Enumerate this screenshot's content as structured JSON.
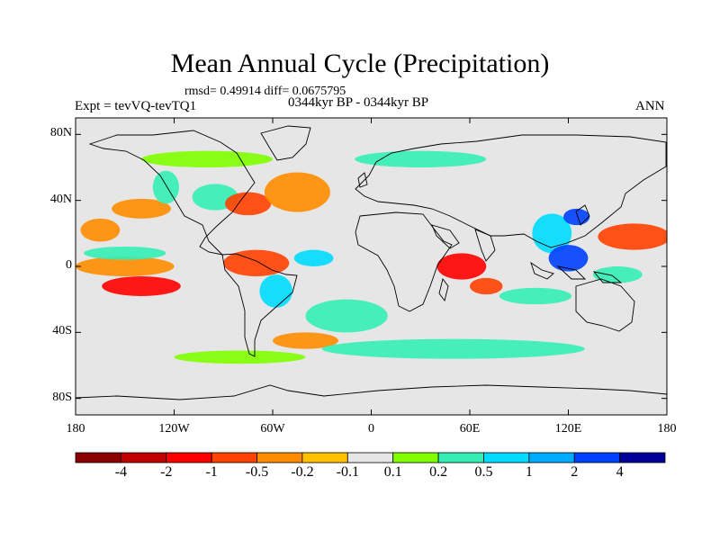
{
  "figure": {
    "title": "Mean Annual Cycle (Precipitation)",
    "stats": "rmsd= 0.49914 diff= 0.0675795",
    "left_label": "Expt = tevVQ-tevTQ1",
    "center_label": "0344kyr BP - 0344kyr BP",
    "right_label": "ANN"
  },
  "map": {
    "projection": "cylindrical equidistant",
    "lon_range": [
      -180,
      180
    ],
    "lat_range": [
      -90,
      90
    ],
    "background_color": "#e6e6e6",
    "coastline_color": "#000000",
    "lat_ticks": [
      {
        "label": "80N",
        "lat": 80
      },
      {
        "label": "40N",
        "lat": 40
      },
      {
        "label": "0",
        "lat": 0
      },
      {
        "label": "40S",
        "lat": -40
      },
      {
        "label": "80S",
        "lat": -80
      }
    ],
    "lon_ticks": [
      {
        "label": "180",
        "lon": -180
      },
      {
        "label": "120W",
        "lon": -120
      },
      {
        "label": "60W",
        "lon": -60
      },
      {
        "label": "0",
        "lon": 0
      },
      {
        "label": "60E",
        "lon": 60
      },
      {
        "label": "120E",
        "lon": 120
      },
      {
        "label": "180",
        "lon": 180
      }
    ],
    "anomaly_patches": [
      {
        "lon": -150,
        "lat": 0,
        "rx": 30,
        "ry": 6,
        "color": "#ff8c00"
      },
      {
        "lon": -140,
        "lat": -12,
        "rx": 24,
        "ry": 6,
        "color": "#ff0000"
      },
      {
        "lon": -150,
        "lat": 8,
        "rx": 25,
        "ry": 4,
        "color": "#34eeb5"
      },
      {
        "lon": -165,
        "lat": 22,
        "rx": 12,
        "ry": 7,
        "color": "#ff8c00"
      },
      {
        "lon": -140,
        "lat": 35,
        "rx": 18,
        "ry": 6,
        "color": "#ff8c00"
      },
      {
        "lon": -125,
        "lat": 48,
        "rx": 8,
        "ry": 10,
        "color": "#34eeb5"
      },
      {
        "lon": -95,
        "lat": 42,
        "rx": 14,
        "ry": 8,
        "color": "#34eeb5"
      },
      {
        "lon": -75,
        "lat": 38,
        "rx": 14,
        "ry": 7,
        "color": "#ff4000"
      },
      {
        "lon": -45,
        "lat": 45,
        "rx": 20,
        "ry": 12,
        "color": "#ff8c00"
      },
      {
        "lon": -70,
        "lat": 2,
        "rx": 20,
        "ry": 8,
        "color": "#ff4000"
      },
      {
        "lon": -35,
        "lat": 5,
        "rx": 12,
        "ry": 5,
        "color": "#00dbff"
      },
      {
        "lon": -58,
        "lat": -15,
        "rx": 10,
        "ry": 10,
        "color": "#00dbff"
      },
      {
        "lon": -40,
        "lat": -45,
        "rx": 20,
        "ry": 5,
        "color": "#ff8c00"
      },
      {
        "lon": -15,
        "lat": -30,
        "rx": 25,
        "ry": 10,
        "color": "#34eeb5"
      },
      {
        "lon": 55,
        "lat": 0,
        "rx": 15,
        "ry": 8,
        "color": "#ff0000"
      },
      {
        "lon": 70,
        "lat": -12,
        "rx": 10,
        "ry": 5,
        "color": "#ff4000"
      },
      {
        "lon": 110,
        "lat": 20,
        "rx": 12,
        "ry": 12,
        "color": "#00dbff"
      },
      {
        "lon": 125,
        "lat": 30,
        "rx": 8,
        "ry": 5,
        "color": "#0040ff"
      },
      {
        "lon": 120,
        "lat": 5,
        "rx": 12,
        "ry": 8,
        "color": "#0040ff"
      },
      {
        "lon": 160,
        "lat": 18,
        "rx": 22,
        "ry": 8,
        "color": "#ff4000"
      },
      {
        "lon": 150,
        "lat": -5,
        "rx": 15,
        "ry": 5,
        "color": "#34eeb5"
      },
      {
        "lon": 100,
        "lat": -18,
        "rx": 22,
        "ry": 5,
        "color": "#34eeb5"
      },
      {
        "lon": 30,
        "lat": 65,
        "rx": 40,
        "ry": 5,
        "color": "#34eeb5"
      },
      {
        "lon": -100,
        "lat": 65,
        "rx": 40,
        "ry": 5,
        "color": "#7fff00"
      },
      {
        "lon": 50,
        "lat": -50,
        "rx": 80,
        "ry": 6,
        "color": "#34eeb5"
      },
      {
        "lon": -80,
        "lat": -55,
        "rx": 40,
        "ry": 4,
        "color": "#7fff00"
      }
    ]
  },
  "colorbar": {
    "colors": [
      "#8b0000",
      "#c00000",
      "#ff0000",
      "#ff4000",
      "#ff8c00",
      "#ffc000",
      "#e6e6e6",
      "#7fff00",
      "#34eeb5",
      "#00dbff",
      "#00aaff",
      "#0040ff",
      "#000099"
    ],
    "labels": [
      "-4",
      "-2",
      "-1",
      "-0.5",
      "-0.2",
      "-0.1",
      "0.1",
      "0.2",
      "0.5",
      "1",
      "2",
      "4"
    ]
  }
}
